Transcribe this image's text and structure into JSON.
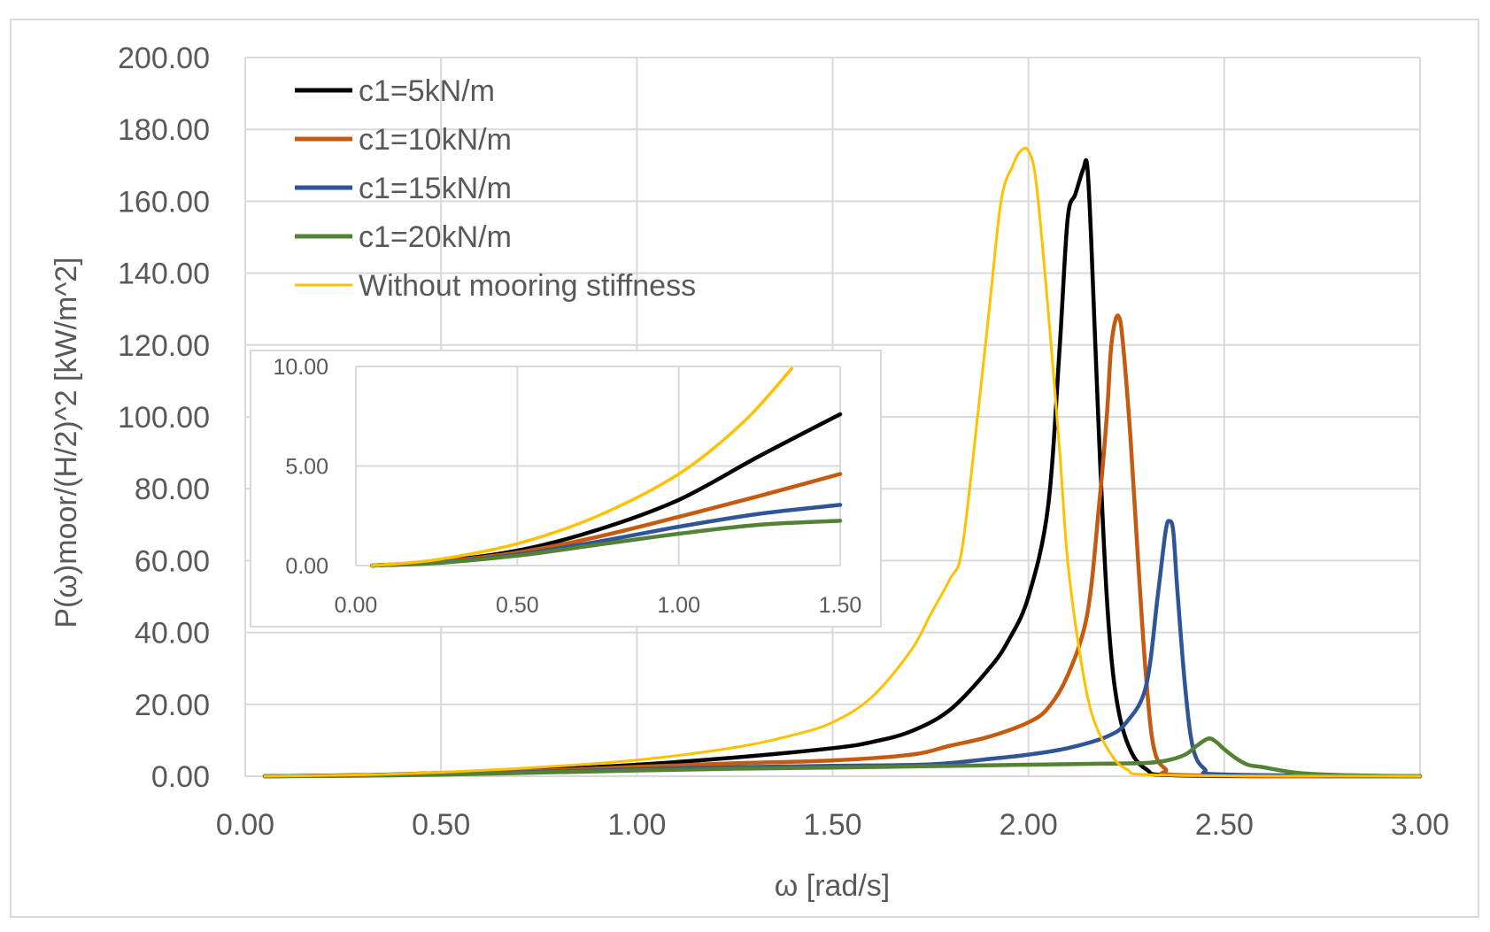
{
  "chart_data": [
    {
      "type": "line",
      "title": "",
      "xlabel": "ω  [rad/s]",
      "ylabel": "P(ω)moor/(H/2)^2   [kW/m^2]",
      "xlim": [
        0,
        3
      ],
      "ylim": [
        0,
        200
      ],
      "x_ticks": [
        0,
        0.5,
        1,
        1.5,
        2,
        2.5,
        3
      ],
      "x_tick_labels": [
        "0.00",
        "0.50",
        "1.00",
        "1.50",
        "2.00",
        "2.50",
        "3.00"
      ],
      "y_ticks": [
        0,
        20,
        40,
        60,
        80,
        100,
        120,
        140,
        160,
        180,
        200
      ],
      "y_tick_labels": [
        "0.00",
        "20.00",
        "40.00",
        "60.00",
        "80.00",
        "100.00",
        "120.00",
        "140.00",
        "160.00",
        "180.00",
        "200.00"
      ],
      "grid": true,
      "legend_position": "top-left",
      "series": [
        {
          "name": "c1=5kN/m",
          "color": "#000000",
          "x": [
            0.05,
            0.3,
            0.5,
            0.75,
            1.0,
            1.25,
            1.5,
            1.6,
            1.7,
            1.8,
            1.9,
            1.95,
            2.0,
            2.05,
            2.08,
            2.1,
            2.12,
            2.14,
            2.15,
            2.16,
            2.18,
            2.2,
            2.22,
            2.25,
            2.3,
            2.4,
            3.0
          ],
          "y": [
            0.0,
            0.3,
            0.9,
            1.8,
            3.2,
            5.2,
            7.8,
            9.5,
            12.5,
            18.5,
            30,
            38,
            50,
            75,
            120,
            155,
            162,
            169,
            170,
            150,
            95,
            50,
            25,
            10,
            2,
            0.2,
            0
          ]
        },
        {
          "name": "c1=10kN/m",
          "color": "#C55A11",
          "x": [
            0.05,
            0.3,
            0.5,
            0.75,
            1.0,
            1.25,
            1.5,
            1.7,
            1.8,
            1.9,
            2.0,
            2.05,
            2.1,
            2.15,
            2.18,
            2.2,
            2.21,
            2.22,
            2.23,
            2.24,
            2.26,
            2.28,
            2.3,
            2.32,
            2.35,
            2.4,
            3.0
          ],
          "y": [
            0.0,
            0.25,
            0.7,
            1.5,
            2.6,
            3.6,
            4.4,
            6,
            8.5,
            11,
            15,
            19,
            28,
            45,
            75,
            100,
            118,
            126,
            128,
            122,
            95,
            60,
            28,
            8,
            2,
            0.3,
            0
          ]
        },
        {
          "name": "c1=15kN/m",
          "color": "#2F5597",
          "x": [
            0.05,
            0.3,
            0.5,
            0.75,
            1.0,
            1.25,
            1.5,
            1.75,
            1.9,
            2.0,
            2.1,
            2.2,
            2.25,
            2.3,
            2.33,
            2.35,
            2.36,
            2.37,
            2.38,
            2.4,
            2.42,
            2.45,
            2.5,
            3.0
          ],
          "y": [
            0.0,
            0.2,
            0.55,
            1.2,
            1.9,
            2.5,
            2.9,
            3.3,
            4.8,
            6,
            7.8,
            11,
            15,
            25,
            50,
            68,
            71,
            68,
            52,
            25,
            8,
            2,
            0.5,
            0
          ]
        },
        {
          "name": "c1=20kN/m",
          "color": "#548235",
          "x": [
            0.05,
            0.3,
            0.5,
            0.75,
            1.0,
            1.25,
            1.5,
            1.75,
            2.0,
            2.2,
            2.3,
            2.35,
            2.4,
            2.43,
            2.46,
            2.48,
            2.5,
            2.53,
            2.56,
            2.6,
            2.65,
            2.7,
            2.8,
            3.0
          ],
          "y": [
            0.0,
            0.15,
            0.45,
            1.0,
            1.6,
            2.1,
            2.4,
            2.8,
            3.2,
            3.5,
            3.7,
            4.3,
            6,
            8.5,
            10.5,
            9.5,
            7.5,
            5,
            3.2,
            2.5,
            1.5,
            0.8,
            0.3,
            0
          ]
        },
        {
          "name": "Without mooring stiffness",
          "color": "#FFC000",
          "x": [
            0.05,
            0.3,
            0.5,
            0.75,
            1.0,
            1.25,
            1.4,
            1.5,
            1.6,
            1.7,
            1.75,
            1.8,
            1.83,
            1.87,
            1.9,
            1.93,
            1.96,
            1.98,
            2.0,
            2.02,
            2.05,
            2.08,
            2.1,
            2.13,
            2.16,
            2.2,
            2.25,
            2.35,
            3.0
          ],
          "y": [
            0.0,
            0.4,
            1.1,
            2.5,
            4.5,
            8.0,
            11.5,
            15,
            22,
            35,
            45,
            55,
            63,
            100,
            130,
            160,
            170,
            174,
            174,
            165,
            130,
            90,
            60,
            35,
            18,
            8,
            2,
            0.3,
            0
          ]
        }
      ]
    },
    {
      "type": "line",
      "title": "",
      "xlabel": "",
      "ylabel": "",
      "xlim": [
        0,
        1.5
      ],
      "ylim": [
        0,
        10
      ],
      "x_ticks": [
        0,
        0.5,
        1,
        1.5
      ],
      "x_tick_labels": [
        "0.00",
        "0.50",
        "1.00",
        "1.50"
      ],
      "y_ticks": [
        0,
        5,
        10
      ],
      "y_tick_labels": [
        "0.00",
        "5.00",
        "10.00"
      ],
      "grid": true,
      "legend_position": "none",
      "series": [
        {
          "color": "#000000",
          "x": [
            0.05,
            0.25,
            0.5,
            0.75,
            1.0,
            1.25,
            1.5
          ],
          "y": [
            0.0,
            0.2,
            0.75,
            1.8,
            3.3,
            5.5,
            7.6
          ]
        },
        {
          "color": "#C55A11",
          "x": [
            0.05,
            0.25,
            0.5,
            0.75,
            1.0,
            1.25,
            1.5
          ],
          "y": [
            0.0,
            0.18,
            0.65,
            1.45,
            2.45,
            3.5,
            4.6
          ]
        },
        {
          "color": "#2F5597",
          "x": [
            0.05,
            0.25,
            0.5,
            0.75,
            1.0,
            1.25,
            1.5
          ],
          "y": [
            0.0,
            0.15,
            0.55,
            1.2,
            1.95,
            2.6,
            3.05
          ]
        },
        {
          "color": "#548235",
          "x": [
            0.05,
            0.25,
            0.5,
            0.75,
            1.0,
            1.25,
            1.5
          ],
          "y": [
            0.0,
            0.13,
            0.5,
            1.05,
            1.6,
            2.05,
            2.25
          ]
        },
        {
          "color": "#FFC000",
          "x": [
            0.05,
            0.25,
            0.5,
            0.75,
            1.0,
            1.2,
            1.35
          ],
          "y": [
            0.0,
            0.3,
            1.1,
            2.5,
            4.6,
            7.2,
            9.9
          ]
        }
      ]
    }
  ]
}
